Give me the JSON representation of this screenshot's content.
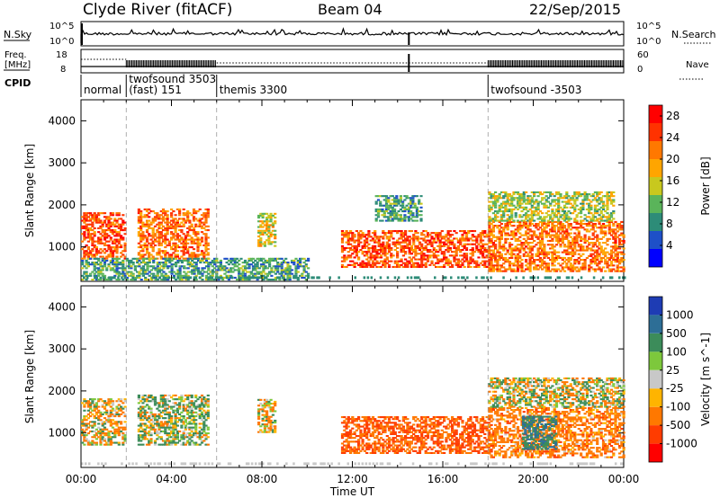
{
  "header": {
    "station": "Clyde River (fitACF)",
    "beam": "Beam 04",
    "date": "22/Sep/2015"
  },
  "top_panels": {
    "nsky_label": "N.Sky",
    "nsky_ticks": [
      "10^5",
      "10^0"
    ],
    "nsearch_label": "N.Search",
    "nsearch_ticks": [
      "10^5",
      "10^0"
    ],
    "freq_label_1": "Freq.",
    "freq_label_2": "[MHz]",
    "freq_ticks": [
      "18",
      "8"
    ],
    "nave_label": "Nave",
    "nave_ticks": [
      "60",
      "0"
    ],
    "cpid_label": "CPID",
    "cpid_modes": [
      {
        "name": "normal",
        "start_hour": 0,
        "end_hour": 2
      },
      {
        "name": "twofsound 3503",
        "sub": "(fast) 151",
        "start_hour": 2,
        "end_hour": 6
      },
      {
        "name": "themis 3300",
        "start_hour": 6,
        "end_hour": 18
      },
      {
        "name": "twofsound -3503",
        "start_hour": 18,
        "end_hour": 24
      }
    ]
  },
  "chart_data": [
    {
      "type": "heatmap",
      "title": "",
      "xlabel": "Time UT",
      "ylabel": "Slant Range [km]",
      "xlim": [
        0,
        24
      ],
      "ylim": [
        180,
        4500
      ],
      "x_tick_labels": [
        "00:00",
        "04:00",
        "08:00",
        "12:00",
        "16:00",
        "20:00",
        "00:00"
      ],
      "y_ticks": [
        1000,
        2000,
        3000,
        4000
      ],
      "colorbar": {
        "label": "Power [dB]",
        "ticks": [
          4,
          8,
          12,
          16,
          20,
          24,
          28
        ],
        "range": [
          0,
          30
        ],
        "colors": [
          "#0000ff",
          "#1e50c8",
          "#2d8c78",
          "#5ab45a",
          "#c8c81e",
          "#ffa500",
          "#ff7800",
          "#ff3200",
          "#ff0000"
        ]
      },
      "echo_regions": [
        {
          "t0": 0.0,
          "t1": 1.9,
          "r0": 700,
          "r1": 1800,
          "level": 24
        },
        {
          "t0": 2.5,
          "t1": 5.6,
          "r0": 700,
          "r1": 1900,
          "level": 22
        },
        {
          "t0": 7.8,
          "t1": 8.6,
          "r0": 1000,
          "r1": 1800,
          "level": 16
        },
        {
          "t0": 11.5,
          "t1": 18.0,
          "r0": 500,
          "r1": 1400,
          "level": 24
        },
        {
          "t0": 18.0,
          "t1": 24.0,
          "r0": 400,
          "r1": 1600,
          "level": 22
        },
        {
          "t0": 18.0,
          "t1": 23.5,
          "r0": 1600,
          "r1": 2300,
          "level": 14
        },
        {
          "t0": 13.0,
          "t1": 15.0,
          "r0": 1600,
          "r1": 2200,
          "level": 10
        },
        {
          "t0": 0.0,
          "t1": 10.0,
          "r0": 200,
          "r1": 700,
          "level": 10
        }
      ]
    },
    {
      "type": "heatmap",
      "title": "",
      "xlabel": "Time UT",
      "ylabel": "Slant Range [km]",
      "xlim": [
        0,
        24
      ],
      "ylim": [
        180,
        4500
      ],
      "x_tick_labels": [
        "00:00",
        "04:00",
        "08:00",
        "12:00",
        "16:00",
        "20:00",
        "00:00"
      ],
      "y_ticks": [
        1000,
        2000,
        3000,
        4000
      ],
      "colorbar": {
        "label": "Velocity [m s^-1]",
        "ticks": [
          "1000",
          "500",
          "100",
          "25",
          "-25",
          "-100",
          "-500",
          "-1000"
        ],
        "colors": [
          "#1e3cb4",
          "#2d6e96",
          "#3c8c5a",
          "#7dc83c",
          "#c8c8c8",
          "#ffb400",
          "#ff7800",
          "#ff3c00",
          "#ff0000"
        ]
      },
      "echo_regions": [
        {
          "t0": 0.0,
          "t1": 1.9,
          "r0": 700,
          "r1": 1800,
          "level": -100
        },
        {
          "t0": 2.5,
          "t1": 5.6,
          "r0": 700,
          "r1": 1900,
          "level": 100
        },
        {
          "t0": 7.8,
          "t1": 8.6,
          "r0": 1000,
          "r1": 1800,
          "level": -100
        },
        {
          "t0": 11.5,
          "t1": 18.0,
          "r0": 500,
          "r1": 1400,
          "level": -500
        },
        {
          "t0": 18.0,
          "t1": 24.0,
          "r0": 400,
          "r1": 1600,
          "level": -300
        },
        {
          "t0": 19.5,
          "t1": 21.0,
          "r0": 600,
          "r1": 1400,
          "level": 500
        },
        {
          "t0": 18.0,
          "t1": 24.0,
          "r0": 1600,
          "r1": 2300,
          "level": 0
        }
      ]
    }
  ]
}
